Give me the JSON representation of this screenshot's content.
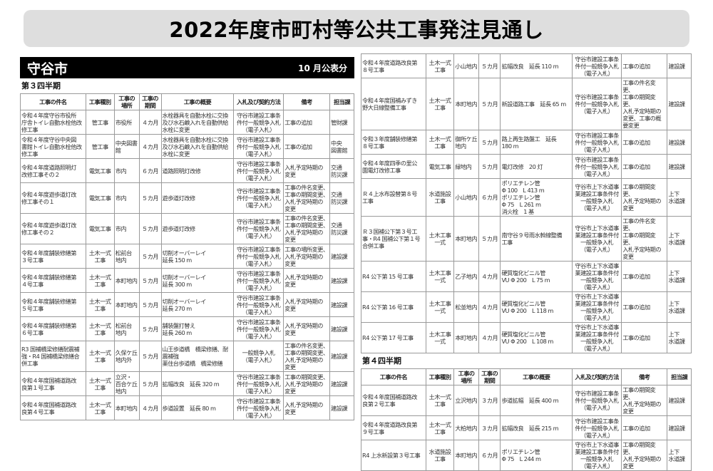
{
  "title": "2022年度市町村等公共工事発注見通し",
  "city": "守谷市",
  "published": "10 月公表分",
  "columns": [
    "工事の件名",
    "工事種別",
    "工事の\n場所",
    "工事の\n期間",
    "工事の概要",
    "入札及び契約方法",
    "備考",
    "担当課"
  ],
  "q3": {
    "label": "第３四半期",
    "rows": [
      [
        "令和４年度守谷市役所\n庁舎トイレ自動水栓他改\n修工事",
        "管工事",
        "市役所",
        "４カ月",
        "水栓器具を自動水栓に交換\n及び水石鹸入れを自動供給\n水栓に変更",
        "守谷市建設工事条\n件付一般競争入札\n（電子入札）",
        "工事の追加",
        "管財課"
      ],
      [
        "令和４年度守谷中央図\n書館トイレ自動水栓他改\n修工事",
        "管工事",
        "中央図書\n館",
        "４カ月",
        "水栓器具を自動水栓に交換\n及び水石鹸入れを自動供給\n水栓に変更",
        "守谷市建設工事条\n件付一般競争入札\n（電子入札）",
        "工事の追加",
        "中央\n図書館"
      ],
      [
        "令和４年度道路照明灯\n改修工事その２",
        "電気工事",
        "市内",
        "６カ月",
        "道路照明灯改修",
        "守谷市建設工事条\n件付一般競争入札\n（電子入札）",
        "入札予定時期の\n変更",
        "交通\n防災課"
      ],
      [
        "令和４年度遊歩道灯改\n修工事その１",
        "電気工事",
        "市内",
        "５カ月",
        "遊歩道灯改修",
        "守谷市建設工事条\n件付一般競争入札\n（電子入札）",
        "工事の件名変更、\n工事の期間変更、\n入札予定時期の\n変更",
        "交通\n防災課"
      ],
      [
        "令和４年度遊歩道灯改\n修工事その２",
        "電気工事",
        "市内",
        "５カ月",
        "遊歩道灯改修",
        "守谷市建設工事条\n件付一般競争入札\n（電子入札）",
        "工事の件名変更、\n工事の期間変更、\n入札予定時期の\n変更",
        "交通\n防災課"
      ],
      [
        "令和４年度舗装修繕第\n３号工事",
        "土木一式\n工事",
        "松前台\n地内",
        "５カ月",
        "切削オーバーレイ\n延長 150 m",
        "守谷市建設工事条\n件付一般競争入札\n（電子入札）",
        "工事の場所変更、\n入札予定時期の\n変更",
        "建設課"
      ],
      [
        "令和４年度舗装修繕第\n４号工事",
        "土木一式\n工事",
        "本町地内",
        "５カ月",
        "切削オーバーレイ\n延長 300 m",
        "守谷市建設工事条\n件付一般競争入札\n（電子入札）",
        "入札予定時期の\n変更",
        "建設課"
      ],
      [
        "令和４年度舗装修繕第\n５号工事",
        "土木一式\n工事",
        "本町地内",
        "５カ月",
        "切削オーバーレイ\n延長 270 m",
        "守谷市建設工事条\n件付一般競争入札\n（電子入札）",
        "入札予定時期の\n変更",
        "建設課"
      ],
      [
        "令和４年度舗装修繕第\n６号工事",
        "土木一式\n工事",
        "松前台\n地内",
        "５カ月",
        "舗装盤打替え\n延長 260 m",
        "守谷市建設工事条\n件付一般競争入札\n（電子入札）",
        "入札予定時期の\n変更",
        "建設課"
      ],
      [
        "R3 国補橋梁修繕耐震補\n強・R4 国補橋梁修繕合\n併工事",
        "土木一式\n工事",
        "久保ケ丘\n地内外",
        "５カ月",
        "山王歩道橋　橋梁修繕、耐\n震補強\n薬住台歩道橋　橋梁修繕",
        "一般競争入札\n（電子入札）",
        "工事の件名変更、\n工事の期間変更、\n入札予定時期の\n変更",
        "建設課"
      ],
      [
        "令和４年度国補道路改\n良第１号工事",
        "土木一式\n工事",
        "立沢・\n百合ケ丘\n地内",
        "５カ月",
        "拡幅改良　延長 320 m",
        "守谷市建設工事条\n件付一般競争入札\n（電子入札）",
        "工事の期間変更、\n入札予定時期の\n変更",
        "建設課"
      ],
      [
        "令和４年度国補道路改\n良第４号工事",
        "土木一式\n工事",
        "本町地内",
        "４カ月",
        "歩道設置　延長 80 m",
        "守谷市建設工事条\n件付一般競争入札\n（電子入札）",
        "入札予定時期の\n変更",
        "建設課"
      ],
      [
        "令和４年度道路改良第\n８号工事",
        "土木一式\n工事",
        "小山地内",
        "５カ月",
        "拡幅改良　延長 110 m",
        "守谷市建設工事条\n件付一般競争入札\n（電子入札）",
        "工事の追加",
        "建設課"
      ],
      [
        "令和４年度国補みずき\n野大日線整備工事",
        "土木一式\n工事",
        "本町地内",
        "５カ月",
        "新設道路工事　延長 65 m",
        "守谷市建設工事条\n件付一般競争入札\n（電子入札）",
        "工事の件名変更、\n工事の期間変更、\n入札予定時期の\n変更、工事の概\n要変更",
        "建設課"
      ],
      [
        "令和３年度舗装修繕第\n８号工事",
        "土木一式\n工事",
        "御所ケ丘\n地内",
        "５カ月",
        "路上再生路盤工　延長\n180 m",
        "守谷市建設工事条\n件付一般競争入札\n（電子入札）",
        "工事の追加",
        "建設課"
      ],
      [
        "令和４年度四季の里公\n園電灯改修工事",
        "電気工事",
        "緑地内",
        "５カ月",
        "電灯改修　20 灯",
        "守谷市建設工事条\n件付一般競争入札\n（電子入札）",
        "工事の追加",
        "建設課"
      ],
      [
        "Ｒ４上水布設替第８号\n工事",
        "水道施設\n工事",
        "小山地内",
        "６カ月",
        "ポリエチレン管\nΦ 100　L 413 m\nポリエチレン管\nΦ 75　L 261 m\n消火栓　1 基",
        "守谷市上下水道事\n業建設工事条件付\n一般競争入札\n（電子入札）",
        "工事の期間変更、\n入札予定時期の\n変更",
        "上下\n水道課"
      ],
      [
        "Ｒ３国補公下第３号工\n事・R4 国補公下第１号\n合併工事",
        "土木工事\n一式",
        "本町地内",
        "５カ月",
        "南守谷９号雨水幹線整備\n工事",
        "守谷市上下水道事\n業建設工事条件付\n一般競争入札\n（電子入札）",
        "工事の件名変更、\n工事の期間変更、\n入札予定時期の\n変更",
        "上下\n水道課"
      ],
      [
        "R4 公下第 15 号工事",
        "土木工事\n一式",
        "乙子地内",
        "４カ月",
        "硬質塩化ビニル管\nVU Φ 200　L 75 m",
        "守谷市上下水道事\n業建設工事条件付\n一般競争入札\n（電子入札）",
        "工事の追加",
        "上下\n水道課"
      ],
      [
        "R4 公下第 16 号工事",
        "土木工事\n一式",
        "松並地内",
        "４カ月",
        "硬質塩化ビニル管\nVU Φ 200　L 118 m",
        "守谷市上下水道事\n業建設工事条件付\n一般競争入札\n（電子入札）",
        "工事の追加",
        "上下\n水道課"
      ],
      [
        "R4 公下第 17 号工事",
        "土木工事\n一式",
        "本町地内",
        "４カ月",
        "硬質塩化ビニル管\nVU Φ 200　L 108 m",
        "守谷市上下水道事\n業建設工事条件付\n一般競争入札\n（電子入札）",
        "工事の追加",
        "上下\n水道課"
      ]
    ]
  },
  "q4": {
    "label": "第４四半期",
    "rows": [
      [
        "令和４年度国補道路改\n良第２号工事",
        "土木一式\n工事",
        "立沢地内",
        "３カ月",
        "歩道拡幅　延長 400 m",
        "守谷市建設工事条\n件付一般競争入札\n（電子入札）",
        "工事の期間変更、\n入札予定時期の\n変更",
        "建設課"
      ],
      [
        "令和４年度道路改良第\n９号工事",
        "土木一式\n工事",
        "大柏地内",
        "３カ月",
        "拡幅改良　延長 215 m",
        "守谷市建設工事条\n件付一般競争入札\n（電子入札）",
        "工事の追加",
        "建設課"
      ],
      [
        "R4 上水新設第３号工事",
        "水道施設\n工事",
        "本町地内",
        "６カ月",
        "ポリエチレン管\nΦ 75　L 244 m",
        "守谷市上下水道事\n業建設工事条件付\n一般競争入札\n（電子入札）",
        "工事の期間変更、\n入札予定時期の\n変更",
        "上下\n水道課"
      ]
    ]
  }
}
